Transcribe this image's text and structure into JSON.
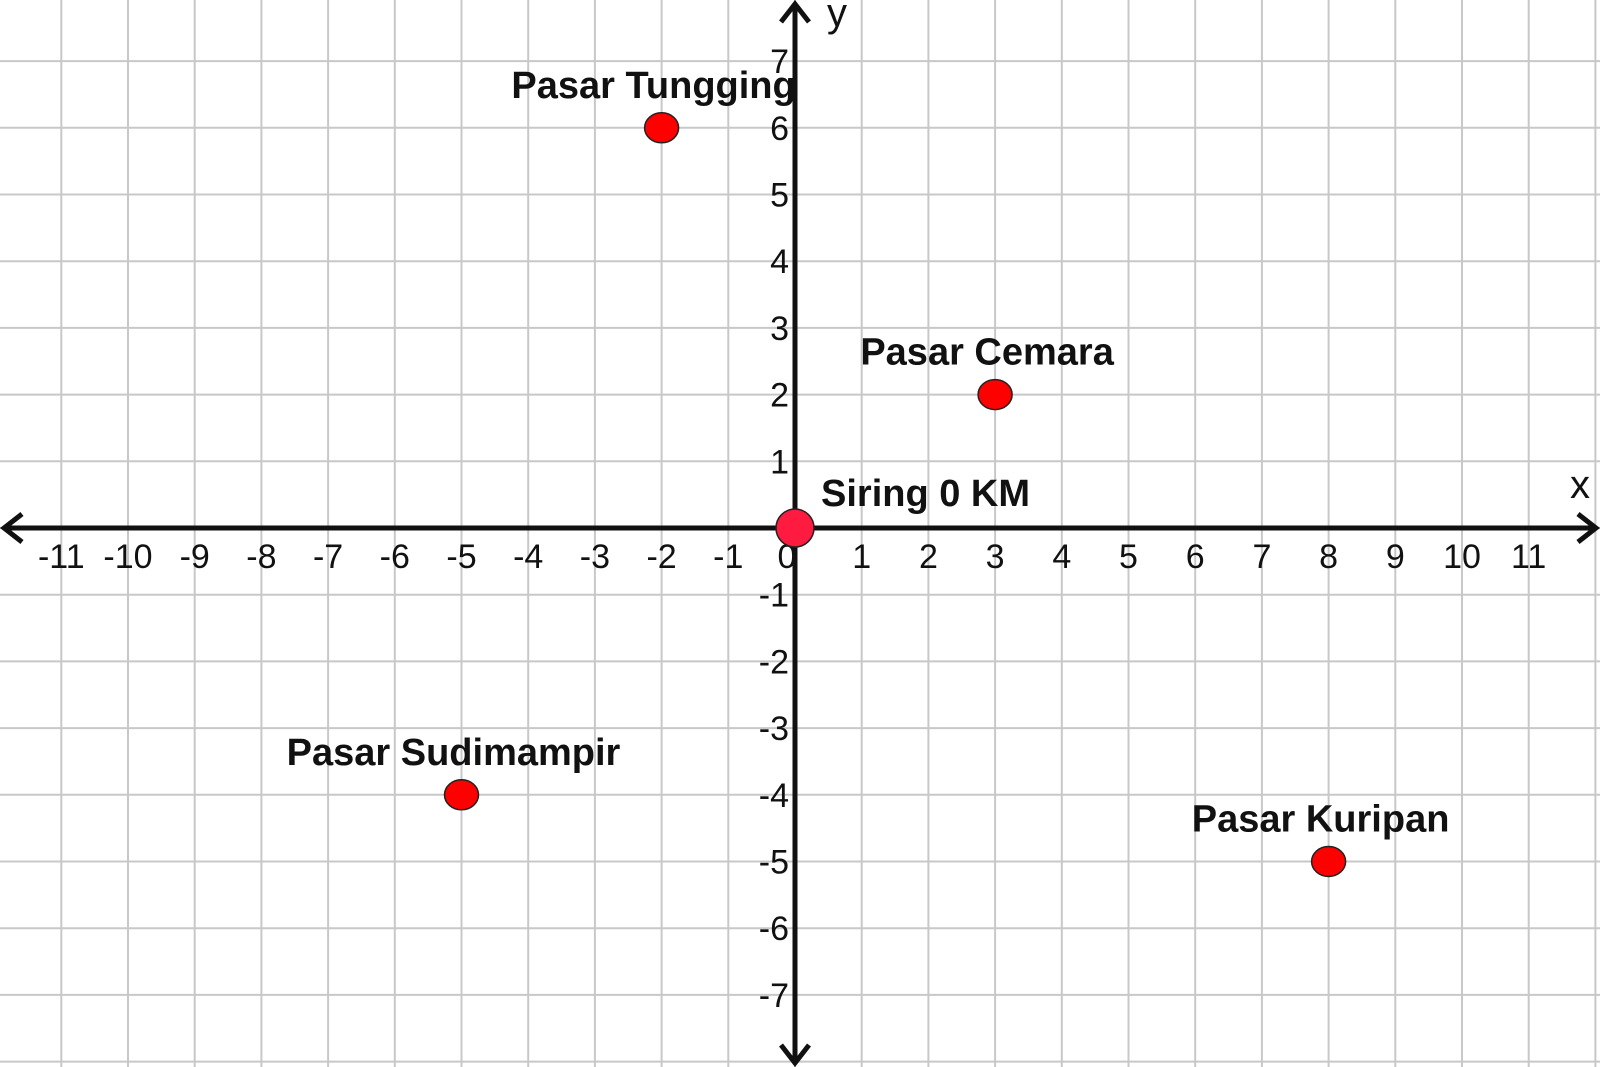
{
  "chart_data": {
    "type": "scatter",
    "xlabel": "x",
    "ylabel": "y",
    "xlim": [
      -11,
      11
    ],
    "ylim": [
      -7,
      7
    ],
    "grid": true,
    "x_ticks": [
      -11,
      -10,
      -9,
      -8,
      -7,
      -6,
      -5,
      -4,
      -3,
      -2,
      -1,
      1,
      2,
      3,
      4,
      5,
      6,
      7,
      8,
      9,
      10,
      11
    ],
    "y_ticks": [
      7,
      6,
      5,
      4,
      3,
      2,
      1,
      -1,
      -2,
      -3,
      -4,
      -5,
      -6,
      -7
    ],
    "origin_label": "0",
    "point_color": "#ff0000",
    "points": [
      {
        "label": "Pasar Tungging",
        "x": -2,
        "y": 6
      },
      {
        "label": "Pasar Cemara",
        "x": 3,
        "y": 2
      },
      {
        "label": "Siring 0 KM",
        "x": 0,
        "y": 0
      },
      {
        "label": "Pasar Sudimampir",
        "x": -5,
        "y": -4
      },
      {
        "label": "Pasar Kuripan",
        "x": 8,
        "y": -5
      }
    ]
  }
}
